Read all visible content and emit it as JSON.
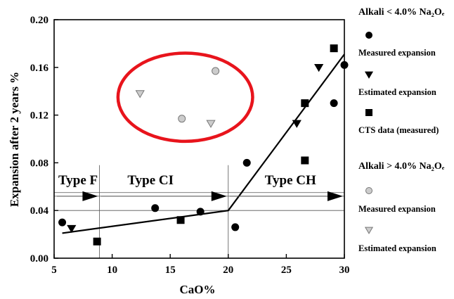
{
  "chart_data": {
    "type": "scatter",
    "xlabel": "CaO%",
    "ylabel": "Expansion after 2 years %",
    "xlim": [
      5,
      30
    ],
    "ylim": [
      0,
      0.2
    ],
    "x_ticks": [
      "5",
      "10",
      "15",
      "20",
      "25",
      "30"
    ],
    "y_ticks": [
      "0.00",
      "0.04",
      "0.08",
      "0.12",
      "0.16",
      "0.20"
    ],
    "grid": false,
    "legend_position": "right",
    "legend_groups": [
      {
        "heading": "Alkali < 4.0% Na₂Oₑ",
        "items": [
          "Measured expansion",
          "Estimated expansion",
          "CTS data (measured)"
        ]
      },
      {
        "heading": "Alkali > 4.0% Na₂Oₑ",
        "items": [
          "Measured expansion",
          "Estimated expansion"
        ]
      }
    ],
    "series": [
      {
        "name": "Measured expansion",
        "group": "Alkali < 4.0% Na₂Oₑ",
        "marker": "circle",
        "color": "#000000",
        "points": [
          [
            5.7,
            0.03
          ],
          [
            13.7,
            0.042
          ],
          [
            17.6,
            0.039
          ],
          [
            20.6,
            0.026
          ],
          [
            21.6,
            0.08
          ],
          [
            29.1,
            0.13
          ],
          [
            30.0,
            0.162
          ]
        ]
      },
      {
        "name": "Estimated expansion",
        "group": "Alkali < 4.0% Na₂Oₑ",
        "marker": "triangle-down",
        "color": "#000000",
        "points": [
          [
            6.5,
            0.025
          ],
          [
            25.9,
            0.113
          ],
          [
            27.8,
            0.16
          ]
        ]
      },
      {
        "name": "CTS data (measured)",
        "group": "Alkali < 4.0% Na₂Oₑ",
        "marker": "square",
        "color": "#000000",
        "points": [
          [
            8.7,
            0.014
          ],
          [
            15.9,
            0.032
          ],
          [
            26.6,
            0.13
          ],
          [
            26.6,
            0.082
          ],
          [
            29.1,
            0.176
          ]
        ]
      },
      {
        "name": "Measured expansion",
        "group": "Alkali > 4.0% Na₂Oₑ",
        "marker": "circle",
        "color": "#cccccc",
        "points": [
          [
            16.0,
            0.117
          ],
          [
            18.9,
            0.157
          ]
        ]
      },
      {
        "name": "Estimated expansion",
        "group": "Alkali > 4.0% Na₂Oₑ",
        "marker": "triangle-down",
        "color": "#cccccc",
        "points": [
          [
            12.4,
            0.138
          ],
          [
            18.5,
            0.113
          ]
        ]
      }
    ],
    "trend_line": [
      [
        5.7,
        0.021
      ],
      [
        20.0,
        0.04
      ],
      [
        30.0,
        0.171
      ]
    ],
    "regions": [
      {
        "label": "Type F",
        "x_start": 5,
        "x_end": 8.9
      },
      {
        "label": "Type CI",
        "x_start": 8.9,
        "x_end": 20
      },
      {
        "label": "Type CH",
        "x_start": 20,
        "x_end": 30
      }
    ],
    "region_boundaries": [
      8.9,
      20
    ],
    "reference_lines_y": [
      0.04,
      0.052,
      0.055
    ],
    "highlight": {
      "shape": "ellipse",
      "color": "#e8141c",
      "center": [
        16.3,
        0.135
      ],
      "radius_x": 5.8,
      "radius_y": 0.037
    }
  }
}
